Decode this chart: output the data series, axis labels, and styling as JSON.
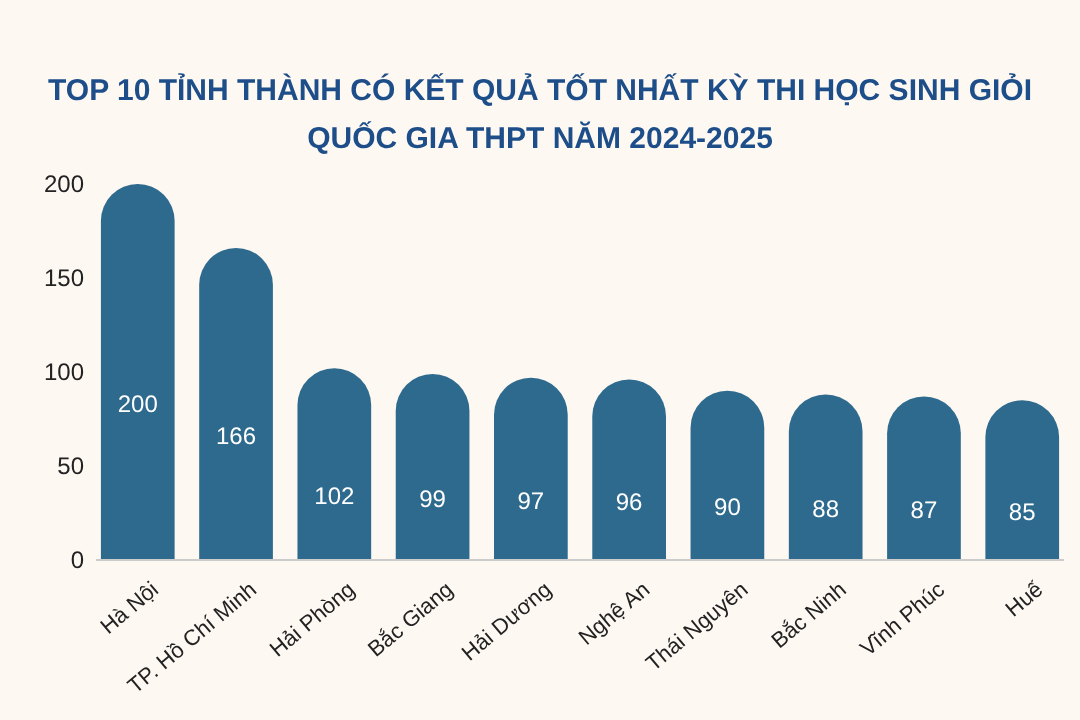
{
  "chart_data": {
    "type": "bar",
    "title": "TOP 10 TỈNH THÀNH CÓ KẾT QUẢ TỐT NHẤT KỲ THI HỌC SINH GIỎI QUỐC GIA THPT NĂM 2024-2025",
    "categories": [
      "Hà Nội",
      "TP. Hồ Chí Minh",
      "Hải Phòng",
      "Bắc Giang",
      "Hải Dương",
      "Nghệ An",
      "Thái Nguyên",
      "Bắc Ninh",
      "Vĩnh Phúc",
      "Huế"
    ],
    "values": [
      200,
      166,
      102,
      99,
      97,
      96,
      90,
      88,
      87,
      85
    ],
    "color": "#2e6a8e",
    "ylim": [
      0,
      200
    ],
    "yticks": [
      0,
      50,
      100,
      150,
      200
    ],
    "data_labels": true
  }
}
